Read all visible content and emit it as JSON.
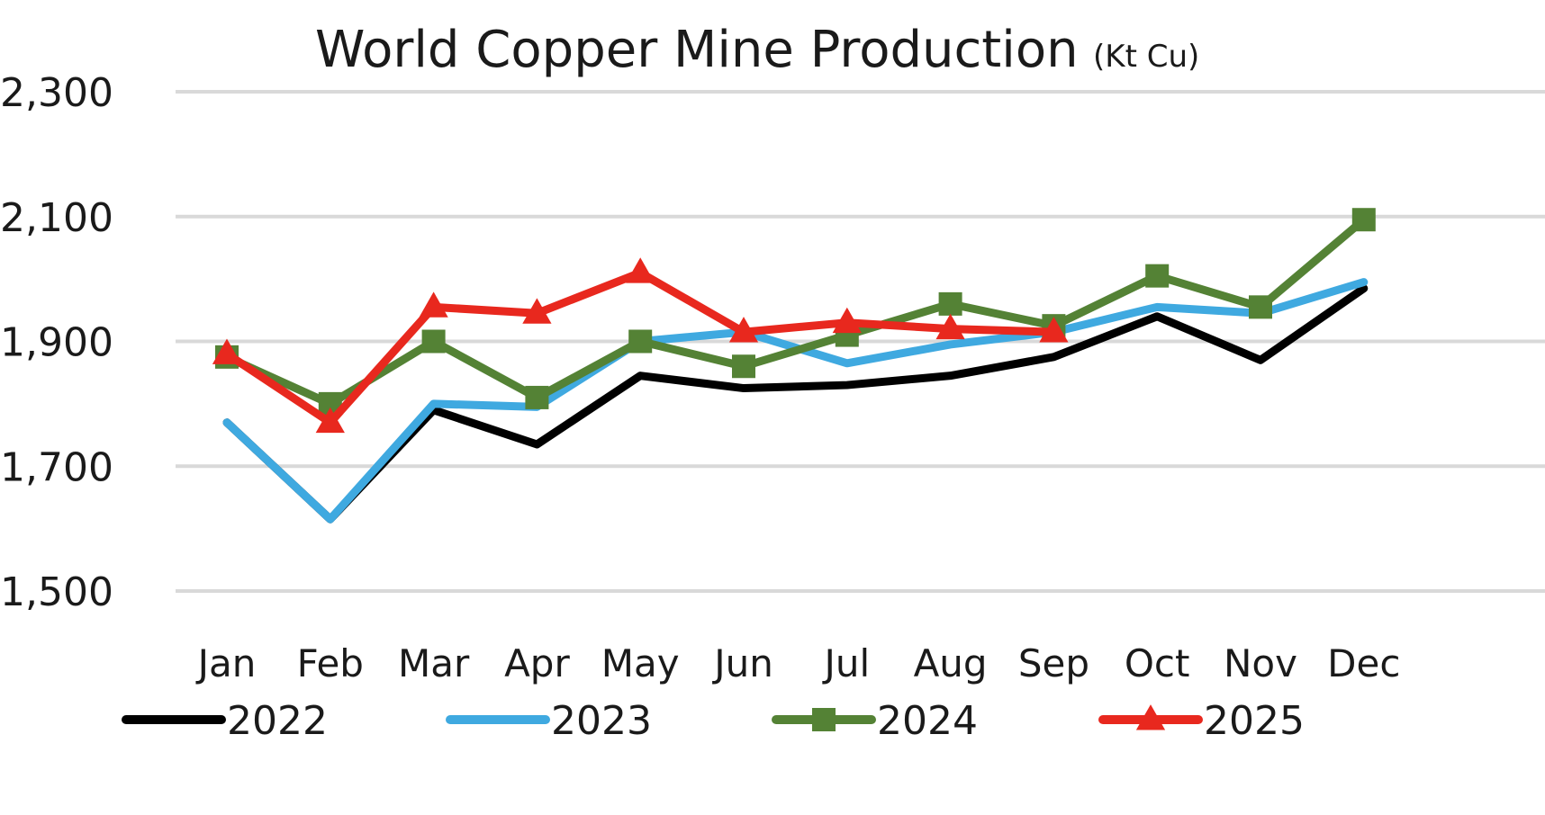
{
  "chart_data": {
    "type": "line",
    "title": "World Copper Mine Production",
    "title_unit": "(Kt Cu)",
    "xlabel": "",
    "ylabel": "",
    "categories": [
      "Jan",
      "Feb",
      "Mar",
      "Apr",
      "May",
      "Jun",
      "Jul",
      "Aug",
      "Sep",
      "Oct",
      "Nov",
      "Dec"
    ],
    "yticks": [
      1500,
      1700,
      1900,
      2100,
      2300
    ],
    "ytick_labels": [
      "1,500",
      "1,700",
      "1,900",
      "2,100",
      "2,300"
    ],
    "ylim": [
      1500,
      2300
    ],
    "grid": true,
    "legend_position": "bottom",
    "series": [
      {
        "name": "2022",
        "color": "#000000",
        "marker": "none",
        "values": [
          1770,
          1615,
          1790,
          1735,
          1845,
          1825,
          1830,
          1845,
          1875,
          1940,
          1870,
          1985
        ]
      },
      {
        "name": "2023",
        "color": "#3fa9e0",
        "marker": "none",
        "values": [
          1770,
          1615,
          1800,
          1795,
          1900,
          1915,
          1865,
          1895,
          1915,
          1955,
          1945,
          1995
        ]
      },
      {
        "name": "2024",
        "color": "#548235",
        "marker": "square",
        "values": [
          1875,
          1800,
          1900,
          1810,
          1900,
          1860,
          1910,
          1960,
          1925,
          2005,
          1955,
          2095
        ]
      },
      {
        "name": "2025",
        "color": "#e8281e",
        "marker": "triangle",
        "values": [
          1880,
          1770,
          1955,
          1945,
          2010,
          1915,
          1930,
          1920,
          1915,
          null,
          null,
          null
        ]
      }
    ]
  }
}
